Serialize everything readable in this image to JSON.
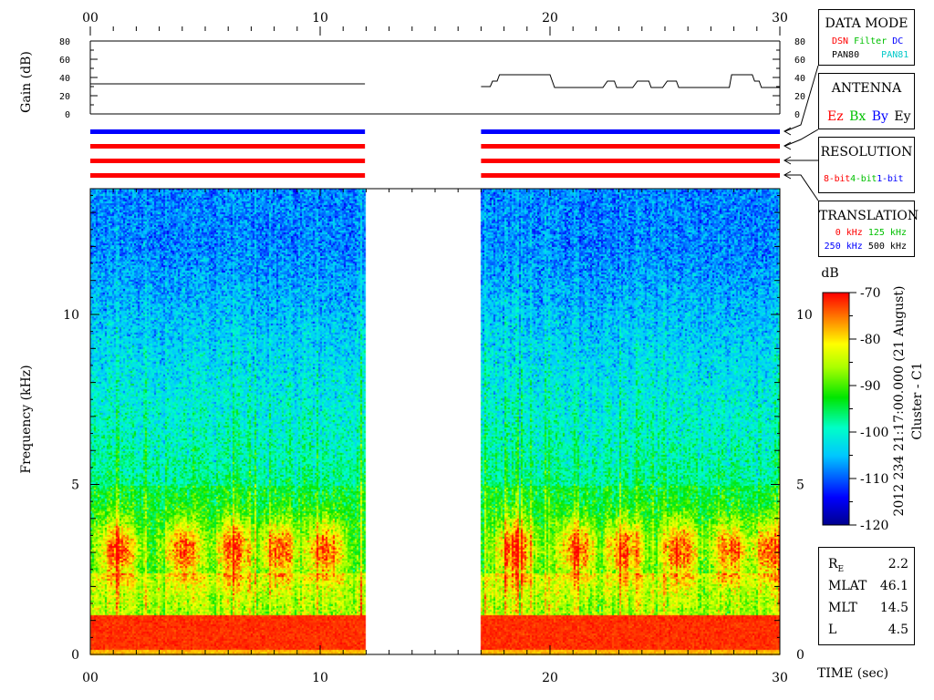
{
  "chart_data": {
    "type": "heatmap",
    "title": "",
    "side_label": {
      "line1": "2012 234 21:17:00.000 (21 August)",
      "line2": "Cluster - C1"
    },
    "x_axis": {
      "label": "TIME (sec)",
      "range": [
        0,
        30
      ],
      "ticks": [
        0,
        10,
        20,
        30
      ],
      "tick_labels": [
        "00",
        "10",
        "20",
        "30"
      ]
    },
    "y_axis": {
      "label": "Frequency (kHz)",
      "range": [
        0,
        13.7
      ],
      "ticks": [
        0,
        5,
        10
      ],
      "tick_labels": [
        "0",
        "5",
        "10"
      ]
    },
    "gain_axis": {
      "label": "Gain (dB)",
      "range": [
        0,
        80
      ],
      "ticks": [
        0,
        20,
        40,
        60,
        80
      ],
      "tick_labels": [
        "0",
        "20",
        "40",
        "60",
        "80"
      ]
    },
    "colorbar": {
      "unit": "dB",
      "range": [
        -120,
        -70
      ],
      "ticks": [
        -70,
        -80,
        -90,
        -100,
        -110,
        -120
      ],
      "tick_labels": [
        "-70",
        "-80",
        "-90",
        "-100",
        "-110",
        "-120"
      ]
    },
    "data_segments": [
      {
        "start": 0.0,
        "end": 11.95
      },
      {
        "start": 17.0,
        "end": 30.0
      }
    ],
    "gain_series": [
      {
        "name": "segment-1",
        "points": [
          [
            0.0,
            33
          ],
          [
            11.95,
            33
          ]
        ]
      },
      {
        "name": "segment-2",
        "points": [
          [
            17.0,
            30
          ],
          [
            17.4,
            30
          ],
          [
            17.5,
            36
          ],
          [
            17.7,
            36
          ],
          [
            17.8,
            43
          ],
          [
            20.0,
            43
          ],
          [
            20.2,
            29
          ],
          [
            22.3,
            29
          ],
          [
            22.5,
            36
          ],
          [
            22.8,
            36
          ],
          [
            22.9,
            29
          ],
          [
            23.6,
            29
          ],
          [
            23.8,
            36
          ],
          [
            24.3,
            36
          ],
          [
            24.4,
            29
          ],
          [
            24.9,
            29
          ],
          [
            25.1,
            36
          ],
          [
            25.5,
            36
          ],
          [
            25.6,
            29
          ],
          [
            27.8,
            29
          ],
          [
            27.9,
            43
          ],
          [
            28.8,
            43
          ],
          [
            28.9,
            36
          ],
          [
            29.1,
            36
          ],
          [
            29.2,
            29
          ],
          [
            30.0,
            29
          ]
        ]
      }
    ],
    "mode_bars": [
      {
        "color": "#0000ff"
      },
      {
        "color": "#ff0000"
      },
      {
        "color": "#ff0000"
      },
      {
        "color": "#ff0000"
      }
    ],
    "spectrogram_features": {
      "low_band_kHz": [
        0,
        1.2
      ],
      "low_band_level_dB": -72,
      "chorus_band_center_kHz": 3.1,
      "chorus_peaks_sec": [
        1.2,
        4.0,
        6.2,
        8.2,
        10.2,
        18.5,
        21.2,
        23.2,
        25.6,
        27.8,
        29.5
      ],
      "background_high_dB": -108,
      "background_mid_dB": -97
    }
  },
  "legend": {
    "data_mode": {
      "title": "DATA MODE",
      "row1": [
        {
          "text": "DSN",
          "color": "#ff0000"
        },
        {
          "text": "Filter",
          "color": "#00c000"
        },
        {
          "text": "DC",
          "color": "#0000ff"
        }
      ],
      "row2": [
        {
          "text": "PAN80",
          "color": "#000000"
        },
        {
          "text": "PAN81",
          "color": "#00c8c8"
        }
      ]
    },
    "antenna": {
      "title": "ANTENNA",
      "items": [
        {
          "text": "Ez",
          "color": "#ff0000"
        },
        {
          "text": "Bx",
          "color": "#00c000"
        },
        {
          "text": "By",
          "color": "#0000ff"
        },
        {
          "text": "Ey",
          "color": "#000000"
        }
      ]
    },
    "resolution": {
      "title": "RESOLUTION",
      "items": [
        {
          "text": "8-bit",
          "color": "#ff0000"
        },
        {
          "text": "4-bit",
          "color": "#00c000"
        },
        {
          "text": "1-bit",
          "color": "#0000ff"
        }
      ]
    },
    "translation": {
      "title": "TRANSLATION",
      "row1": [
        {
          "text": "0 kHz",
          "color": "#ff0000"
        },
        {
          "text": "125 kHz",
          "color": "#00c000"
        }
      ],
      "row2": [
        {
          "text": "250 kHz",
          "color": "#0000ff"
        },
        {
          "text": "500 kHz",
          "color": "#000000"
        }
      ]
    }
  },
  "ephemeris": {
    "rows": [
      {
        "label": "RE",
        "value": "2.2"
      },
      {
        "label": "MLAT",
        "value": "46.1"
      },
      {
        "label": "MLT",
        "value": "14.5"
      },
      {
        "label": "L",
        "value": "4.5"
      }
    ]
  }
}
